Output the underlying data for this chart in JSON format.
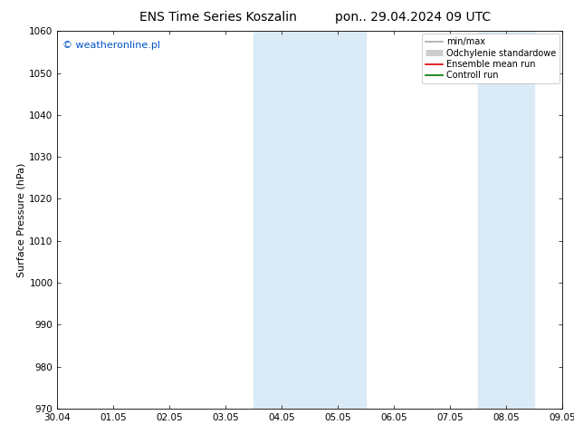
{
  "title_left": "ENS Time Series Koszalin",
  "title_right": "pon.. 29.04.2024 09 UTC",
  "ylabel": "Surface Pressure (hPa)",
  "ylim": [
    970,
    1060
  ],
  "yticks": [
    970,
    980,
    990,
    1000,
    1010,
    1020,
    1030,
    1040,
    1050,
    1060
  ],
  "x_labels": [
    "30.04",
    "01.05",
    "02.05",
    "03.05",
    "04.05",
    "05.05",
    "06.05",
    "07.05",
    "08.05",
    "09.05"
  ],
  "x_values": [
    0,
    1,
    2,
    3,
    4,
    5,
    6,
    7,
    8,
    9
  ],
  "xlim": [
    0,
    9
  ],
  "shaded_regions": [
    {
      "xmin": 3.5,
      "xmax": 4.5,
      "color": "#daeaf6"
    },
    {
      "xmin": 4.5,
      "xmax": 5.5,
      "color": "#daeaf6"
    },
    {
      "xmin": 7.5,
      "xmax": 8.0,
      "color": "#daeaf6"
    },
    {
      "xmin": 8.0,
      "xmax": 8.5,
      "color": "#daeaf6"
    }
  ],
  "watermark_text": "© weatheronline.pl",
  "watermark_color": "#0055cc",
  "background_color": "#ffffff",
  "plot_bg_color": "#ffffff",
  "legend_items": [
    {
      "label": "min/max",
      "color": "#aaaaaa",
      "lw": 1.2
    },
    {
      "label": "Odchylenie standardowe",
      "color": "#cccccc",
      "lw": 5
    },
    {
      "label": "Ensemble mean run",
      "color": "#dd0000",
      "lw": 1.2
    },
    {
      "label": "Controll run",
      "color": "#007700",
      "lw": 1.2
    }
  ],
  "title_fontsize": 10,
  "tick_fontsize": 7.5,
  "ylabel_fontsize": 8,
  "legend_fontsize": 7,
  "watermark_fontsize": 8
}
